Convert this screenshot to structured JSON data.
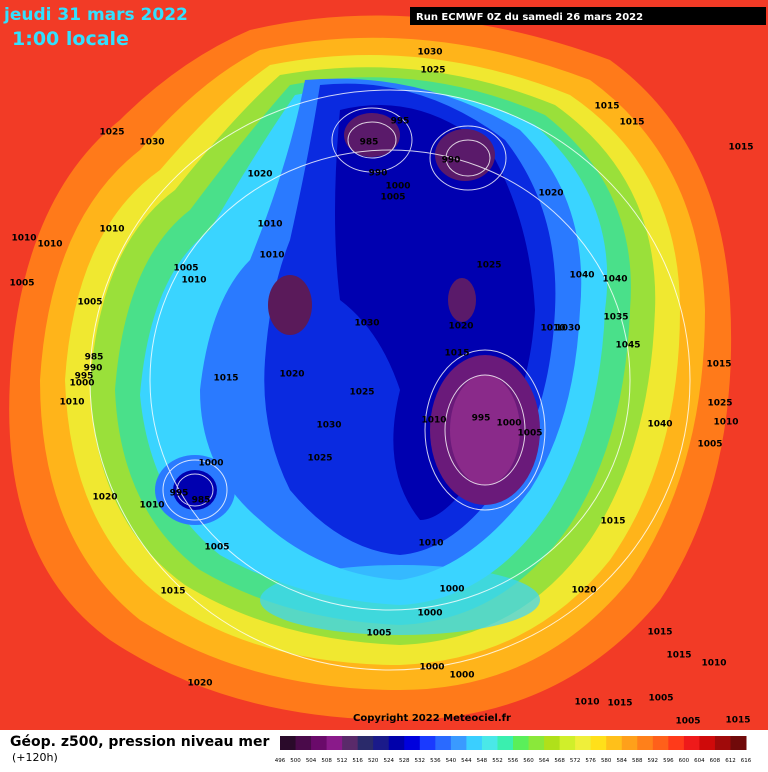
{
  "header": {
    "date": "jeudi 31 mars 2022",
    "time": "1:00 locale",
    "run": "Run ECMWF 0Z du samedi 26 mars 2022"
  },
  "copyright": "Copyright 2022 Meteociel.fr",
  "footer": {
    "title": "Géop. z500, pression niveau mer",
    "lead": "(+120h)"
  },
  "pressure_labels": [
    "1030",
    "1025",
    "995",
    "985",
    "990",
    "990",
    "1000",
    "1005",
    "1015",
    "1015",
    "1015",
    "1025",
    "1030",
    "1020",
    "1020",
    "1010",
    "1010",
    "1010",
    "1010",
    "1010",
    "1025",
    "1005",
    "1010",
    "1040",
    "1040",
    "1005",
    "1005",
    "1035",
    "1030",
    "1020",
    "1010",
    "1030",
    "1045",
    "1015",
    "985",
    "990",
    "995",
    "1000",
    "1020",
    "1015",
    "1025",
    "1010",
    "1015",
    "1025",
    "1010",
    "1010",
    "995",
    "1000",
    "1005",
    "1030",
    "1040",
    "1005",
    "1025",
    "1000",
    "995",
    "985",
    "1020",
    "1010",
    "1015",
    "1010",
    "1005",
    "1015",
    "1000",
    "1020",
    "1000",
    "1005",
    "1015",
    "1015",
    "1010",
    "1000",
    "1000",
    "1020",
    "1010",
    "1005",
    "1015",
    "1005",
    "1015"
  ],
  "legend": {
    "ticks": [
      496,
      500,
      504,
      508,
      512,
      516,
      520,
      524,
      528,
      532,
      536,
      540,
      544,
      548,
      552,
      556,
      560,
      564,
      568,
      572,
      576,
      580,
      584,
      588,
      592,
      596,
      600,
      604,
      608,
      612,
      616
    ],
    "colors": [
      "#2a0a2a",
      "#4a0a4a",
      "#6a0a6a",
      "#8a1a8a",
      "#5a2a6a",
      "#2a2a6a",
      "#1a1a8a",
      "#0000aa",
      "#0000dd",
      "#1a3aff",
      "#2a6aff",
      "#3a9aff",
      "#3acfff",
      "#4ae8e8",
      "#3aefaf",
      "#5aef5a",
      "#8ae83a",
      "#b0e01a",
      "#d0ef2a",
      "#efef3a",
      "#ffe01a",
      "#ffc01a",
      "#ffa01a",
      "#ff801a",
      "#ff601a",
      "#ff3a1a",
      "#ef1a1a",
      "#cf0a0a",
      "#a00a0a",
      "#700a0a"
    ]
  }
}
